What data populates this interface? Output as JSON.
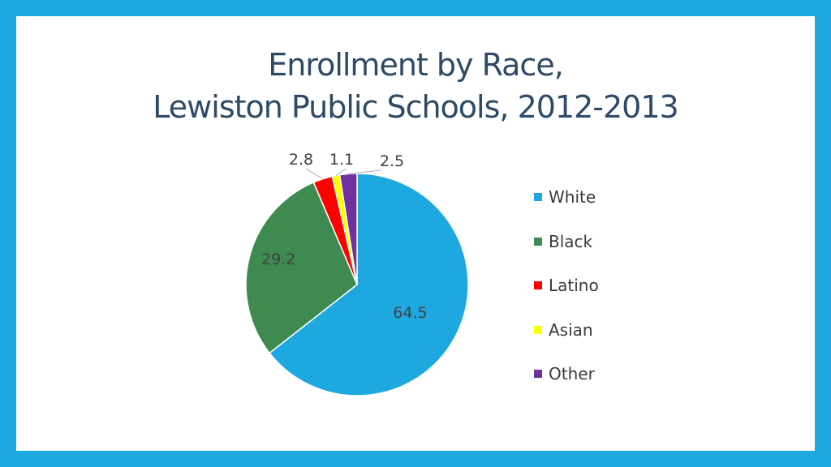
{
  "slide": {
    "title_line1": "Enrollment by Race,",
    "title_line2": "Lewiston Public Schools, 2012-2013"
  },
  "chart_data": {
    "type": "pie",
    "categories": [
      "White",
      "Black",
      "Latino",
      "Asian",
      "Other"
    ],
    "values": [
      64.5,
      29.2,
      2.8,
      1.1,
      2.5
    ],
    "data_labels": [
      "64.5",
      "29.2",
      "2.8",
      "1.1",
      "2.5"
    ],
    "colors": [
      "#1EA8E0",
      "#3F8A51",
      "#FF0000",
      "#FFFF00",
      "#7030A0"
    ],
    "legend": "right",
    "title": "Enrollment by Race, Lewiston Public Schools, 2012-2013"
  }
}
